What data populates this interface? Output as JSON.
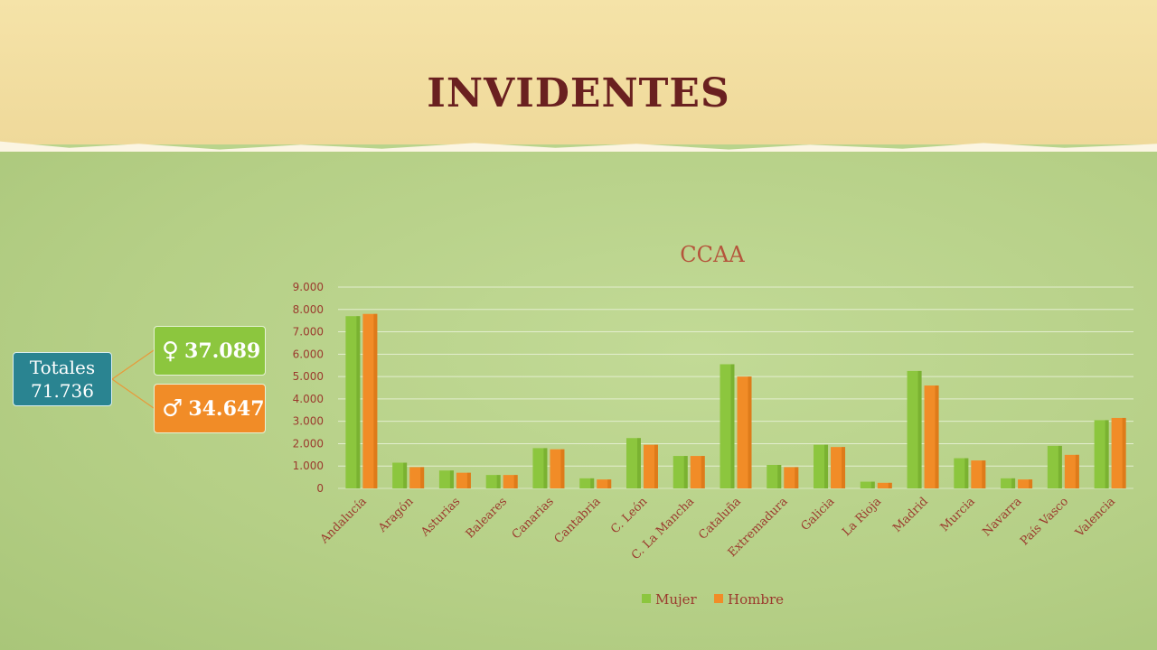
{
  "slide": {
    "title": "INVIDENTES"
  },
  "totals": {
    "label": "Totales",
    "value": "71.736",
    "female_symbol": "♀",
    "female_value": "37.089",
    "male_symbol": "♂",
    "male_value": "34.647"
  },
  "colors": {
    "mujer": "#8cc63e",
    "hombre": "#f18c27",
    "totals_box": "#2a8491",
    "title": "#6a2020"
  },
  "chart_data": {
    "type": "bar",
    "title": "CCAA",
    "xlabel": "",
    "ylabel": "",
    "ylim": [
      0,
      9000
    ],
    "yticks": [
      0,
      1000,
      2000,
      3000,
      4000,
      5000,
      6000,
      7000,
      8000,
      9000
    ],
    "ytick_labels": [
      "0",
      "1.000",
      "2.000",
      "3.000",
      "4.000",
      "5.000",
      "6.000",
      "7.000",
      "8.000",
      "9.000"
    ],
    "grid": true,
    "legend_position": "bottom",
    "categories": [
      "Andalucía",
      "Aragón",
      "Asturias",
      "Baleares",
      "Canarias",
      "Cantabria",
      "C. León",
      "C. La Mancha",
      "Cataluña",
      "Extremadura",
      "Galicia",
      "La Rioja",
      "Madrid",
      "Murcia",
      "Navarra",
      "País Vasco",
      "Valencia"
    ],
    "series": [
      {
        "name": "Mujer",
        "values": [
          7700,
          1150,
          800,
          600,
          1800,
          450,
          2250,
          1450,
          5550,
          1050,
          1950,
          300,
          5250,
          1350,
          450,
          1900,
          3050
        ]
      },
      {
        "name": "Hombre",
        "values": [
          7800,
          950,
          700,
          600,
          1750,
          400,
          1950,
          1450,
          5000,
          950,
          1850,
          250,
          4600,
          1250,
          400,
          1500,
          3150
        ]
      }
    ]
  }
}
